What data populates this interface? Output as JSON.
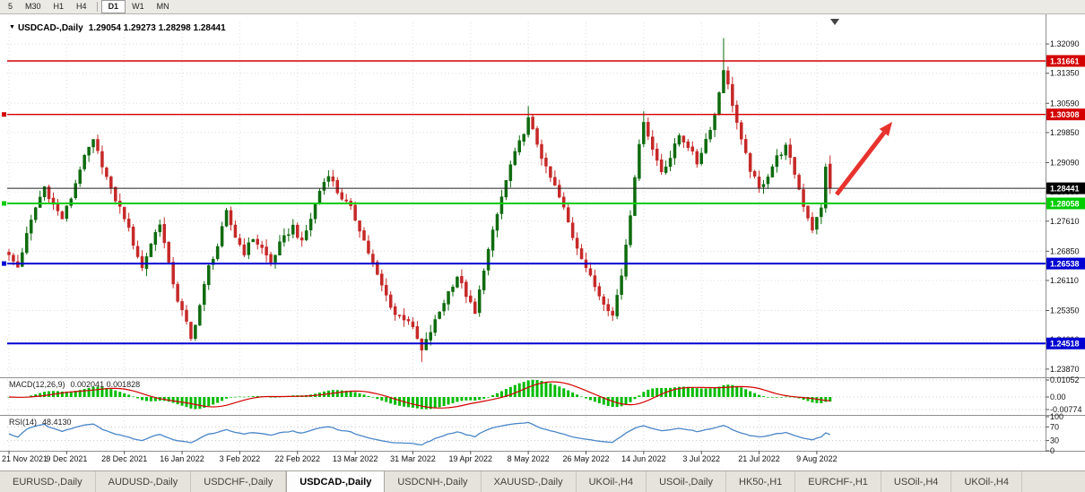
{
  "toolbar": {
    "timeframe_groups": [
      [
        "5",
        "M30",
        "H1",
        "H4"
      ],
      [
        "D1",
        "W1",
        "MN"
      ]
    ],
    "active_timeframe": "D1"
  },
  "chart": {
    "symbol": "USDCAD-,Daily",
    "ohlc_text": "1.29054 1.29273 1.28298 1.28441",
    "colors": {
      "up": "#0e6b0e",
      "down": "#c62828",
      "grid": "#dcdcdc",
      "axis_text": "#111111",
      "arrow": "#e8322e"
    },
    "hlines": [
      {
        "price": 1.31661,
        "label": "1.31661",
        "color": "#d40000",
        "box": "#d40000",
        "width": 1.4,
        "handle": false
      },
      {
        "price": 1.30308,
        "label": "1.30308",
        "color": "#d40000",
        "box": "#d40000",
        "width": 1.4,
        "handle": true
      },
      {
        "price": 1.28441,
        "label": "1.28441",
        "color": "#222222",
        "box": "#000000",
        "width": 1,
        "handle": false
      },
      {
        "price": 1.28058,
        "label": "1.28058",
        "color": "#00cc00",
        "box": "#00cc00",
        "width": 2,
        "handle": true
      },
      {
        "price": 1.26538,
        "label": "1.26538",
        "color": "#0000d2",
        "box": "#0000d2",
        "width": 2,
        "handle": true
      },
      {
        "price": 1.24518,
        "label": "1.24518",
        "color": "#0000d2",
        "box": "#0000d2",
        "width": 2,
        "handle": false
      }
    ]
  },
  "chart_data": {
    "type": "candlestick",
    "symbol": "USDCAD",
    "timeframe": "Daily",
    "candle_count": 186,
    "last_candle": {
      "open": 1.29054,
      "high": 1.29273,
      "low": 1.28298,
      "close": 1.28441
    },
    "price_ticks": [
      "1.32090",
      "1.31350",
      "1.30590",
      "1.29850",
      "1.29090",
      "1.28350",
      "1.27610",
      "1.26850",
      "1.26110",
      "1.25350",
      "1.24610",
      "1.23870"
    ],
    "date_ticks": [
      "21 Nov 2021",
      "9 Dec 2021",
      "28 Dec 2021",
      "16 Jan 2022",
      "3 Feb 2022",
      "22 Feb 2022",
      "13 Mar 2022",
      "31 Mar 2022",
      "19 Apr 2022",
      "8 May 2022",
      "26 May 2022",
      "14 Jun 2022",
      "3 Jul 2022",
      "21 Jul 2022",
      "9 Aug 2022"
    ],
    "close_waypoints": [
      [
        0,
        1.2672
      ],
      [
        2,
        1.2645
      ],
      [
        4,
        1.2725
      ],
      [
        6,
        1.2795
      ],
      [
        8,
        1.2848
      ],
      [
        10,
        1.2802
      ],
      [
        12,
        1.2768
      ],
      [
        14,
        1.282
      ],
      [
        16,
        1.2895
      ],
      [
        18,
        1.2945
      ],
      [
        19,
        1.2962
      ],
      [
        21,
        1.2905
      ],
      [
        23,
        1.2838
      ],
      [
        26,
        1.2772
      ],
      [
        28,
        1.2705
      ],
      [
        30,
        1.2642
      ],
      [
        32,
        1.2705
      ],
      [
        34,
        1.2758
      ],
      [
        36,
        1.265
      ],
      [
        38,
        1.2562
      ],
      [
        40,
        1.2502
      ],
      [
        41,
        1.2462
      ],
      [
        43,
        1.2548
      ],
      [
        45,
        1.2645
      ],
      [
        47,
        1.2698
      ],
      [
        49,
        1.2782
      ],
      [
        51,
        1.2722
      ],
      [
        53,
        1.2682
      ],
      [
        55,
        1.2718
      ],
      [
        57,
        1.2692
      ],
      [
        59,
        1.2655
      ],
      [
        61,
        1.2702
      ],
      [
        64,
        1.2748
      ],
      [
        66,
        1.2705
      ],
      [
        68,
        1.2768
      ],
      [
        70,
        1.2838
      ],
      [
        72,
        1.2882
      ],
      [
        74,
        1.2835
      ],
      [
        77,
        1.2792
      ],
      [
        79,
        1.2742
      ],
      [
        81,
        1.2682
      ],
      [
        83,
        1.2622
      ],
      [
        85,
        1.2572
      ],
      [
        87,
        1.2525
      ],
      [
        90,
        1.2512
      ],
      [
        92,
        1.2462
      ],
      [
        93,
        1.2432
      ],
      [
        95,
        1.2482
      ],
      [
        97,
        1.2532
      ],
      [
        99,
        1.2582
      ],
      [
        101,
        1.2622
      ],
      [
        103,
        1.2575
      ],
      [
        105,
        1.2525
      ],
      [
        107,
        1.2642
      ],
      [
        109,
        1.2732
      ],
      [
        111,
        1.2822
      ],
      [
        113,
        1.2902
      ],
      [
        115,
        1.2958
      ],
      [
        117,
        1.3018
      ],
      [
        119,
        1.2958
      ],
      [
        121,
        1.2892
      ],
      [
        123,
        1.2848
      ],
      [
        125,
        1.2792
      ],
      [
        127,
        1.2722
      ],
      [
        129,
        1.2672
      ],
      [
        131,
        1.2618
      ],
      [
        133,
        1.2575
      ],
      [
        135,
        1.2542
      ],
      [
        136,
        1.2522
      ],
      [
        138,
        1.2625
      ],
      [
        140,
        1.2782
      ],
      [
        141,
        1.2878
      ],
      [
        143,
        1.3018
      ],
      [
        145,
        1.2942
      ],
      [
        147,
        1.2888
      ],
      [
        149,
        1.2922
      ],
      [
        151,
        1.2978
      ],
      [
        153,
        1.2952
      ],
      [
        155,
        1.2908
      ],
      [
        157,
        1.2968
      ],
      [
        159,
        1.3028
      ],
      [
        161,
        1.3148
      ],
      [
        163,
        1.3058
      ],
      [
        165,
        1.2962
      ],
      [
        167,
        1.2892
      ],
      [
        169,
        1.2842
      ],
      [
        171,
        1.2878
      ],
      [
        173,
        1.2922
      ],
      [
        175,
        1.2948
      ],
      [
        177,
        1.2882
      ],
      [
        179,
        1.2802
      ],
      [
        181,
        1.2742
      ],
      [
        183,
        1.2792
      ],
      [
        184,
        1.2902
      ],
      [
        185,
        1.28441
      ]
    ],
    "wick_overrides": [
      {
        "i": 19,
        "high": 1.2968
      },
      {
        "i": 41,
        "low": 1.2458
      },
      {
        "i": 93,
        "low": 1.2405
      },
      {
        "i": 117,
        "high": 1.3052
      },
      {
        "i": 143,
        "high": 1.3039
      },
      {
        "i": 161,
        "high": 1.3224
      }
    ],
    "indicators": [
      "MACD(12,26,9)",
      "RSI(14)"
    ]
  },
  "macd": {
    "label": "MACD(12,26,9)",
    "values_text": "0.002041 0.001828",
    "axis": [
      "0.01052",
      "0.00",
      "-0.00774"
    ],
    "histogram_color": "#00bb00",
    "signal_color": "#d40000"
  },
  "rsi": {
    "label": "RSI(14)",
    "value_text": "48.4130",
    "axis": [
      "100",
      "70",
      "30",
      "0"
    ],
    "levels": [
      70,
      30
    ],
    "line_color": "#4a86c8"
  },
  "tabs": [
    "EURUSD-,Daily",
    "AUDUSD-,Daily",
    "USDCHF-,Daily",
    "USDCAD-,Daily",
    "USDCNH-,Daily",
    "XAUUSD-,Daily",
    "UKOil-,H4",
    "USOil-,Daily",
    "HK50-,H1",
    "EURCHF-,H1",
    "USOil-,H4",
    "UKOil-,H4"
  ],
  "active_tab": "USDCAD-,Daily"
}
